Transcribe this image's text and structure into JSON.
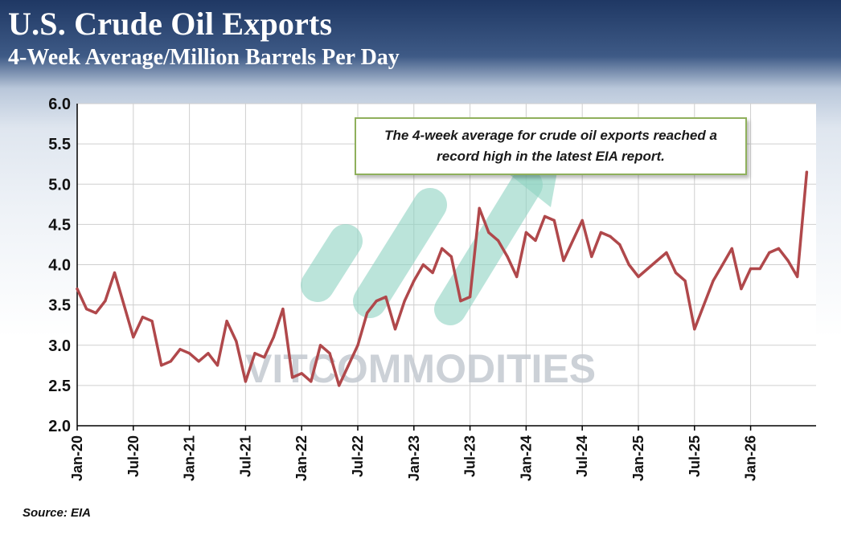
{
  "header": {
    "title": "U.S. Crude Oil Exports",
    "subtitle": "4-Week Average/Million Barrels Per Day"
  },
  "annotation": "The 4-week average for crude oil exports reached a record high in the latest EIA report.",
  "source": "Source: EIA",
  "watermark": {
    "text": "VITCOMMODITIES",
    "colors": {
      "text": "#c4c9d1",
      "arrow": "#8ed3c2"
    }
  },
  "colors": {
    "header_dark": "#1f3864",
    "line": "#b0484b",
    "grid": "#cfcfcf",
    "axis": "#000000",
    "annotation_border": "#8fb05c"
  },
  "chart_data": {
    "type": "line",
    "title": "U.S. Crude Oil Exports",
    "subtitle": "4-Week Average/Million Barrels Per Day",
    "xlabel": "",
    "ylabel": "",
    "ylim": [
      2.0,
      6.0
    ],
    "yticks": [
      "2.0",
      "2.5",
      "3.0",
      "3.5",
      "4.0",
      "4.5",
      "5.0",
      "5.5",
      "6.0"
    ],
    "xlim": [
      "2020-01",
      "2026-08"
    ],
    "xticks": [
      "Jan-20",
      "Jul-20",
      "Jan-21",
      "Jul-21",
      "Jan-22",
      "Jul-22",
      "Jan-23",
      "Jul-23",
      "Jan-24",
      "Jul-24",
      "Jan-25",
      "Jul-25",
      "Jan-26"
    ],
    "grid": true,
    "legend": "none",
    "series": [
      {
        "x": [
          "2020-01",
          "2020-02",
          "2020-03",
          "2020-04",
          "2020-05",
          "2020-06",
          "2020-07",
          "2020-08",
          "2020-09",
          "2020-10",
          "2020-11",
          "2020-12",
          "2021-01",
          "2021-02",
          "2021-03",
          "2021-04",
          "2021-05",
          "2021-06",
          "2021-07",
          "2021-08",
          "2021-09",
          "2021-10",
          "2021-11",
          "2021-12",
          "2022-01",
          "2022-02",
          "2022-03",
          "2022-04",
          "2022-05",
          "2022-06",
          "2022-07",
          "2022-08",
          "2022-09",
          "2022-10",
          "2022-11",
          "2022-12",
          "2023-01",
          "2023-02",
          "2023-03",
          "2023-04",
          "2023-05",
          "2023-06",
          "2023-07",
          "2023-08",
          "2023-09",
          "2023-10",
          "2023-11",
          "2023-12",
          "2024-01",
          "2024-02",
          "2024-03",
          "2024-04",
          "2024-05",
          "2024-06",
          "2024-07",
          "2024-08",
          "2024-09",
          "2024-10",
          "2024-11",
          "2024-12",
          "2025-01",
          "2025-02",
          "2025-03",
          "2025-04",
          "2025-05",
          "2025-06",
          "2025-07",
          "2025-08",
          "2025-09",
          "2025-10",
          "2025-11",
          "2025-12",
          "2026-01",
          "2026-02",
          "2026-03",
          "2026-04",
          "2026-05",
          "2026-06",
          "2026-07"
        ],
        "values": [
          3.7,
          3.45,
          3.4,
          3.55,
          3.9,
          3.5,
          3.1,
          3.35,
          3.3,
          2.75,
          2.8,
          2.95,
          2.9,
          2.8,
          2.9,
          2.75,
          3.3,
          3.05,
          2.55,
          2.9,
          2.85,
          3.1,
          3.45,
          2.6,
          2.65,
          2.55,
          3.0,
          2.9,
          2.5,
          2.75,
          3.0,
          3.4,
          3.55,
          3.6,
          3.2,
          3.55,
          3.8,
          4.0,
          3.9,
          4.2,
          4.1,
          3.55,
          3.6,
          4.7,
          4.4,
          4.3,
          4.1,
          3.85,
          4.4,
          4.3,
          4.6,
          4.55,
          4.05,
          4.3,
          4.55,
          4.1,
          4.4,
          4.35,
          4.25,
          4.0,
          3.85,
          3.95,
          4.05,
          4.15,
          3.9,
          3.8,
          3.2,
          3.5,
          3.8,
          4.0,
          4.2,
          3.7,
          3.95,
          3.95,
          4.15,
          4.2,
          4.05,
          3.85,
          5.15
        ]
      }
    ]
  }
}
